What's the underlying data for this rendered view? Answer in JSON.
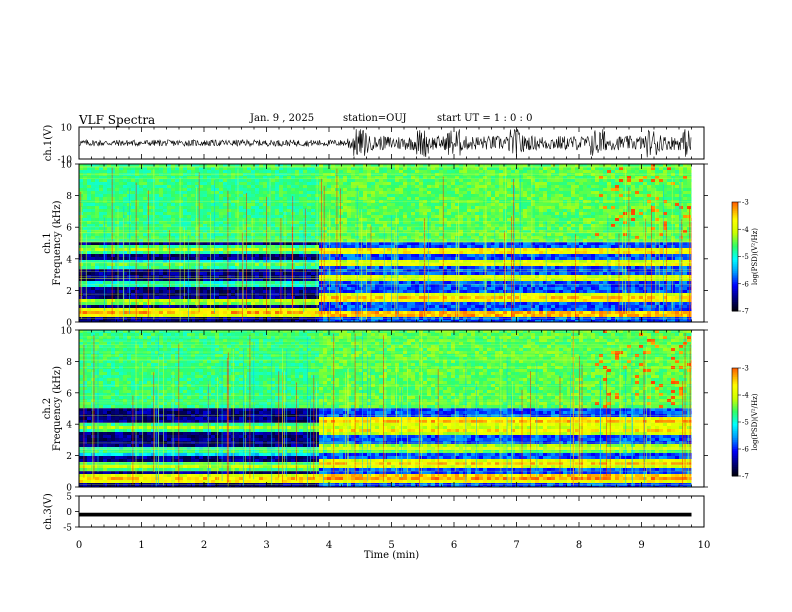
{
  "header": {
    "title": "VLF Spectra",
    "date": "Jan. 9 , 2025",
    "station": "station=OUJ",
    "start": "start UT =  1 : 0  : 0"
  },
  "chart_data": [
    {
      "type": "line",
      "name": "ch1-waveform",
      "ylabel": "ch.1(V)",
      "ylim": [
        -10,
        10
      ],
      "yticks": [
        10,
        -10
      ],
      "x_range_min": [
        0,
        9.8
      ],
      "amplitude_v": {
        "quiet": 2.0,
        "active_after_min": 4.3,
        "active": 4.5,
        "bursts_min": [
          4.5,
          5.5,
          6.0,
          7.0,
          8.3,
          9.2,
          9.75
        ]
      }
    },
    {
      "type": "heatmap",
      "name": "ch1-spectrogram",
      "ylabel": "ch.1\nFrequency (kHz)",
      "ylabel_lines": [
        "ch.1",
        "Frequency (kHz)"
      ],
      "yticks": [
        0,
        2,
        4,
        6,
        8,
        10
      ],
      "ylim_khz": [
        0,
        10
      ],
      "x_range_min": [
        0,
        9.8
      ],
      "transition_min": 3.8,
      "colorbar": {
        "label": "log(PSD)(V²/Hz)",
        "range": [
          -7,
          -3
        ],
        "ticks": [
          "-3",
          "-4",
          "-5",
          "-6",
          "-7"
        ]
      },
      "bands_khz": {
        "before": [
          {
            "f": 0.6,
            "level": -3.6
          },
          {
            "f": 1.3,
            "level": -4.2
          },
          {
            "f": 2.4,
            "level": -4.8
          },
          {
            "f": 3.6,
            "level": -4.6
          },
          {
            "f": 4.6,
            "level": -4.4
          }
        ],
        "after": [
          {
            "f": 0.5,
            "level": -3.4
          },
          {
            "f": 1.5,
            "level": -3.6
          },
          {
            "f": 2.8,
            "level": -4.0
          },
          {
            "f": 3.7,
            "level": -3.9
          },
          {
            "f": 4.5,
            "level": -3.7
          }
        ]
      }
    },
    {
      "type": "heatmap",
      "name": "ch2-spectrogram",
      "ylabel": "ch.2\nFrequency (kHz)",
      "ylabel_lines": [
        "ch.2",
        "Frequency (kHz)"
      ],
      "yticks": [
        0,
        2,
        4,
        6,
        8,
        10
      ],
      "ylim_khz": [
        0,
        10
      ],
      "x_range_min": [
        0,
        9.8
      ],
      "transition_min": 3.8,
      "colorbar": {
        "label": "log(PSD)(V²/Hz)",
        "range": [
          -7,
          -3
        ],
        "ticks": [
          "-3",
          "-4",
          "-5",
          "-6",
          "-7"
        ]
      },
      "bands_khz": {
        "before": [
          {
            "f": 0.5,
            "level": -3.6
          },
          {
            "f": 1.3,
            "level": -4.3
          },
          {
            "f": 2.3,
            "level": -4.8
          },
          {
            "f": 3.8,
            "level": -4.4
          }
        ],
        "after": [
          {
            "f": 0.6,
            "level": -3.4
          },
          {
            "f": 1.5,
            "level": -3.7
          },
          {
            "f": 2.5,
            "level": -4.1
          },
          {
            "f": 3.6,
            "level": -3.8
          },
          {
            "f": 4.2,
            "level": -3.6
          }
        ]
      }
    },
    {
      "type": "line",
      "name": "ch3-waveform",
      "ylabel": "ch.3(V)",
      "ylim": [
        -5,
        5
      ],
      "yticks": [
        5,
        0,
        -5
      ],
      "x_range_min": [
        0,
        9.8
      ],
      "value_v": -1,
      "thickness_v": 1.2
    }
  ],
  "xaxis": {
    "label": "Time (min)",
    "range": [
      0,
      10
    ],
    "ticks": [
      "0",
      "1",
      "2",
      "3",
      "4",
      "5",
      "6",
      "7",
      "8",
      "9",
      "10"
    ]
  },
  "colors": {
    "frame": "#000000",
    "background": "#ffffff",
    "colormap": [
      "#000000",
      "#00007a",
      "#0000ff",
      "#0099ff",
      "#00ffff",
      "#33ff66",
      "#ccff00",
      "#ffff00",
      "#ff8800",
      "#ff0000",
      "#ffffff"
    ]
  }
}
